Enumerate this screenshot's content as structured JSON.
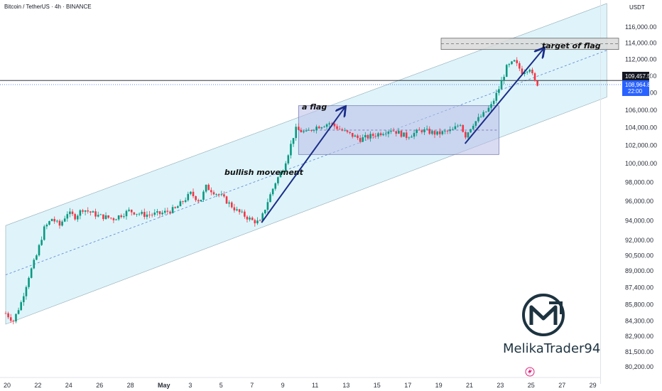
{
  "symbol_line": "Bitcoin / TetherUS · 4h · BINANCE",
  "currency": "USDT",
  "watermark": "MelikaTrader94",
  "annotations": {
    "flag": "a flag",
    "bullish": "bullish movement",
    "target": "target of flag"
  },
  "price_labels": {
    "upper": "109,457.56",
    "current": "108,964.87",
    "countdown": "22:00"
  },
  "colors": {
    "up": "#089981",
    "down": "#f23645",
    "channel_fill": "#d3f0f8",
    "arrow": "#1a2d88",
    "flag_box": "#b9bde8",
    "target_box": "#d9d9d9",
    "current_price": "#2962ff"
  },
  "chart_data": {
    "type": "candlestick",
    "y_axis_labels": [
      "116,000.00",
      "114,000.00",
      "112,000.00",
      "110,000.00",
      "108,000.00",
      "106,000.00",
      "104,000.00",
      "102,000.00",
      "100,000.00",
      "98,000.00",
      "96,000.00",
      "94,000.00",
      "92,000.00",
      "90,500.00",
      "89,000.00",
      "87,400.00",
      "85,800.00",
      "84,300.00",
      "82,900.00",
      "81,500.00",
      "80,200.00"
    ],
    "x_axis_labels": [
      "20",
      "22",
      "24",
      "26",
      "28",
      "May",
      "3",
      "5",
      "7",
      "9",
      "11",
      "13",
      "15",
      "17",
      "19",
      "21",
      "23",
      "25",
      "27",
      "29"
    ],
    "ylim": [
      80200,
      116000
    ],
    "log_scale": true,
    "series_close_path": [
      [
        0,
        85000
      ],
      [
        0.5,
        84300
      ],
      [
        1,
        86000
      ],
      [
        1.5,
        88500
      ],
      [
        2,
        90500
      ],
      [
        2.5,
        93200
      ],
      [
        3,
        94200
      ],
      [
        3.5,
        93500
      ],
      [
        4,
        94800
      ],
      [
        4.5,
        94400
      ],
      [
        5,
        95200
      ],
      [
        6,
        94500
      ],
      [
        7,
        94200
      ],
      [
        8,
        95000
      ],
      [
        9,
        94600
      ],
      [
        10,
        94700
      ],
      [
        11,
        95200
      ],
      [
        12,
        96800
      ],
      [
        12.6,
        96000
      ],
      [
        13,
        97500
      ],
      [
        14,
        96500
      ],
      [
        15,
        95000
      ],
      [
        16,
        94000
      ],
      [
        16.5,
        93800
      ],
      [
        17,
        96000
      ],
      [
        17.5,
        98000
      ],
      [
        18,
        99500
      ],
      [
        18.4,
        101500
      ],
      [
        18.8,
        103800
      ],
      [
        19.5,
        103400
      ],
      [
        20,
        104000
      ],
      [
        21,
        104500
      ],
      [
        22,
        103500
      ],
      [
        23,
        102700
      ],
      [
        24,
        103200
      ],
      [
        25,
        103800
      ],
      [
        26,
        103000
      ],
      [
        27,
        103700
      ],
      [
        28,
        103300
      ],
      [
        29,
        103700
      ],
      [
        29.5,
        104500
      ],
      [
        29.8,
        103000
      ],
      [
        30.3,
        104400
      ],
      [
        31,
        105500
      ],
      [
        31.5,
        106500
      ],
      [
        32,
        108500
      ],
      [
        32.5,
        111000
      ],
      [
        33,
        111700
      ],
      [
        33.5,
        110500
      ],
      [
        34,
        111000
      ],
      [
        34.3,
        109300
      ],
      [
        34.6,
        108965
      ]
    ],
    "channel": {
      "lower": [
        [
          0,
          84000
        ],
        [
          39,
          107500
        ]
      ],
      "upper": [
        [
          0,
          93500
        ],
        [
          39,
          119000
        ]
      ]
    },
    "flag_zone": {
      "x": [
        19,
        32
      ],
      "y": [
        101000,
        106500
      ]
    },
    "target_zone": {
      "y": [
        113200,
        114600
      ]
    }
  }
}
